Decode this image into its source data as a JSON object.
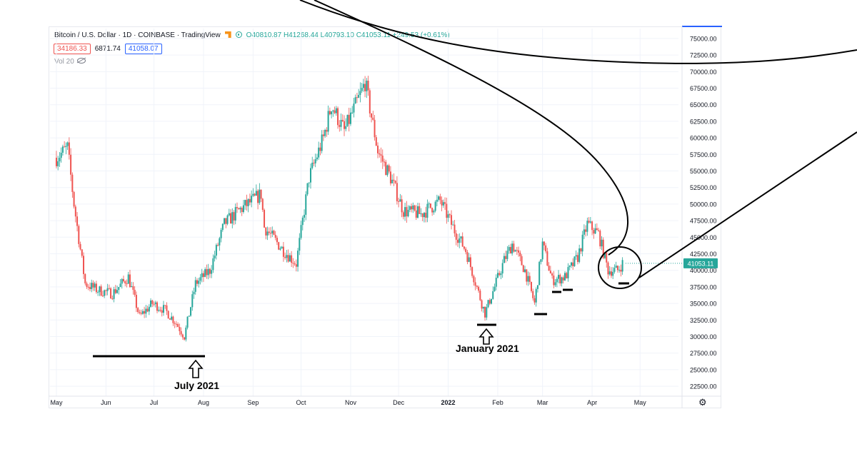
{
  "header": {
    "symbol": "Bitcoin / U.S. Dollar · 1D · COINBASE · TradingView",
    "ohlc": "O40810.87 H41268.44 L40793.10 C41053.11 +249.53 (+0.61%)"
  },
  "quote": {
    "sell": "34186.33",
    "spread": "6871.74",
    "buy": "41058.07"
  },
  "volume_label": "Vol 20",
  "icons": {
    "settings": "gear-icon",
    "visibility": "eye-off-icon",
    "live": "live-dot-icon"
  },
  "colors": {
    "up": "#26a69a",
    "down": "#ef5350",
    "annotation": "#000000",
    "price_tag": "#26a69a"
  },
  "annotations": {
    "july": "July 2021",
    "january": "January 2021"
  },
  "chart_data": {
    "type": "candlestick",
    "title": "Bitcoin / U.S. Dollar · 1D · COINBASE · TradingView",
    "x_ticks": [
      "May",
      "Jun",
      "Jul",
      "Aug",
      "Sep",
      "Oct",
      "Nov",
      "Dec",
      "2022",
      "Feb",
      "Mar",
      "Apr",
      "May"
    ],
    "y_ticks": [
      "75000.00",
      "72500.00",
      "70000.00",
      "67500.00",
      "65000.00",
      "62500.00",
      "60000.00",
      "57500.00",
      "55000.00",
      "52500.00",
      "50000.00",
      "47500.00",
      "45000.00",
      "42500.00",
      "40000.00",
      "37500.00",
      "35000.00",
      "32500.00",
      "30000.00",
      "27500.00",
      "25000.00",
      "22500.00"
    ],
    "ylim": [
      21000,
      76500
    ],
    "last_price": "41053.11",
    "price_path": [
      [
        "2021-05-01",
        57000
      ],
      [
        "2021-05-08",
        58500
      ],
      [
        "2021-05-12",
        50000
      ],
      [
        "2021-05-19",
        38000
      ],
      [
        "2021-05-27",
        37000
      ],
      [
        "2021-06-05",
        36500
      ],
      [
        "2021-06-15",
        39000
      ],
      [
        "2021-06-22",
        33000
      ],
      [
        "2021-06-30",
        35000
      ],
      [
        "2021-07-08",
        34000
      ],
      [
        "2021-07-15",
        32000
      ],
      [
        "2021-07-20",
        30000
      ],
      [
        "2021-07-27",
        38000
      ],
      [
        "2021-08-05",
        40000
      ],
      [
        "2021-08-14",
        47000
      ],
      [
        "2021-08-23",
        49000
      ],
      [
        "2021-09-06",
        51500
      ],
      [
        "2021-09-08",
        46500
      ],
      [
        "2021-09-20",
        43000
      ],
      [
        "2021-09-28",
        41000
      ],
      [
        "2021-10-06",
        54000
      ],
      [
        "2021-10-15",
        60000
      ],
      [
        "2021-10-20",
        65000
      ],
      [
        "2021-10-28",
        61000
      ],
      [
        "2021-11-08",
        67000
      ],
      [
        "2021-11-10",
        68500
      ],
      [
        "2021-11-18",
        58000
      ],
      [
        "2021-11-26",
        54000
      ],
      [
        "2021-12-04",
        49000
      ],
      [
        "2021-12-15",
        48500
      ],
      [
        "2021-12-27",
        50500
      ],
      [
        "2022-01-05",
        46000
      ],
      [
        "2022-01-12",
        43000
      ],
      [
        "2022-01-22",
        35000
      ],
      [
        "2022-01-24",
        33500
      ],
      [
        "2022-02-05",
        41500
      ],
      [
        "2022-02-10",
        44000
      ],
      [
        "2022-02-18",
        40000
      ],
      [
        "2022-02-24",
        35000
      ],
      [
        "2022-03-01",
        44000
      ],
      [
        "2022-03-07",
        38500
      ],
      [
        "2022-03-15",
        39000
      ],
      [
        "2022-03-23",
        42000
      ],
      [
        "2022-03-29",
        47000
      ],
      [
        "2022-04-05",
        45500
      ],
      [
        "2022-04-11",
        40000
      ],
      [
        "2022-04-17",
        40000
      ],
      [
        "2022-04-20",
        41053
      ]
    ]
  }
}
